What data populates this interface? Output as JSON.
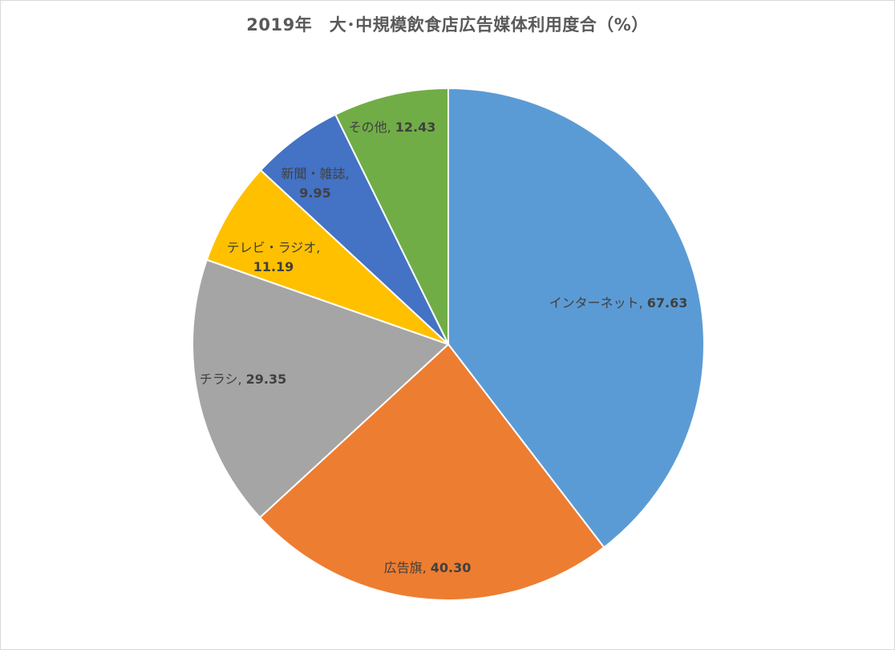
{
  "chart_data": {
    "type": "pie",
    "title": "2019年　大･中規模飲食店広告媒体利用度合（%）",
    "slices": [
      {
        "name": "インターネット",
        "value": 67.63,
        "value_label": "67.63",
        "color": "#5B9BD5"
      },
      {
        "name": "広告旗",
        "value": 40.3,
        "value_label": "40.30",
        "color": "#ED7D31"
      },
      {
        "name": "チラシ",
        "value": 29.35,
        "value_label": "29.35",
        "color": "#A5A5A5"
      },
      {
        "name": "テレビ・ラジオ",
        "value": 11.19,
        "value_label": "11.19",
        "color": "#FFC000"
      },
      {
        "name": "新聞・雑誌",
        "value": 9.95,
        "value_label": "9.95",
        "color": "#4472C4"
      },
      {
        "name": "その他",
        "value": 12.43,
        "value_label": "12.43",
        "color": "#70AD47"
      }
    ],
    "legend": "none",
    "start_angle": "12 o'clock",
    "direction": "clockwise"
  }
}
